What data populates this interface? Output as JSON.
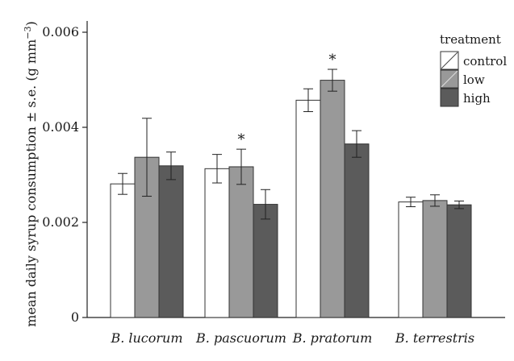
{
  "chart_data": {
    "type": "bar",
    "ylabel": "mean daily syrup consumption ± s.e. (g mm⁻³)",
    "ylabel_main": "mean daily syrup consumption ± s.e. (g mm",
    "ylabel_sup": "−3",
    "ylabel_close": ")",
    "ylim": [
      0,
      0.0062
    ],
    "yticks": [
      0,
      0.002,
      0.004,
      0.006
    ],
    "ytick_labels": [
      "0",
      "0.002",
      "0.004",
      "0.006"
    ],
    "categories": [
      "B. lucorum",
      "B. pascuorum",
      "B. pratorum",
      "B. terrestris"
    ],
    "legend": {
      "title": "treatment",
      "position": "top-right"
    },
    "grid": false,
    "series": [
      {
        "name": "control",
        "values": [
          0.00281,
          0.00313,
          0.00457,
          0.00243
        ],
        "errors": [
          0.00022,
          0.0003,
          0.00024,
          0.0001
        ],
        "color": "#ffffff"
      },
      {
        "name": "low",
        "values": [
          0.00337,
          0.00317,
          0.00499,
          0.00246
        ],
        "errors": [
          0.00082,
          0.00037,
          0.00023,
          0.00012
        ],
        "color": "#999999"
      },
      {
        "name": "high",
        "values": [
          0.00319,
          0.00238,
          0.00365,
          0.00237
        ],
        "errors": [
          0.00029,
          0.00031,
          0.00028,
          8e-05
        ],
        "color": "#5b5b5b"
      }
    ],
    "annotations": [
      {
        "text": "*",
        "series": "low",
        "category": "B. pascuorum"
      },
      {
        "text": "*",
        "series": "low",
        "category": "B. pratorum"
      }
    ]
  }
}
